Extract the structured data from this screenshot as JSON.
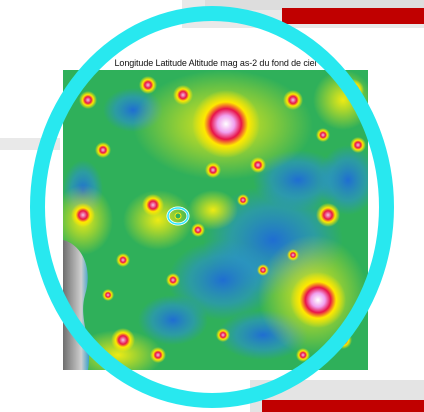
{
  "map": {
    "caption": "Longitude Latitude Altitude mag as-2 du fond de ciel"
  },
  "colors": {
    "frame_ring": "#28e8ef",
    "accent_red": "#c00000",
    "map_background": "#2fb05a",
    "marker": "#2ee8ff"
  }
}
